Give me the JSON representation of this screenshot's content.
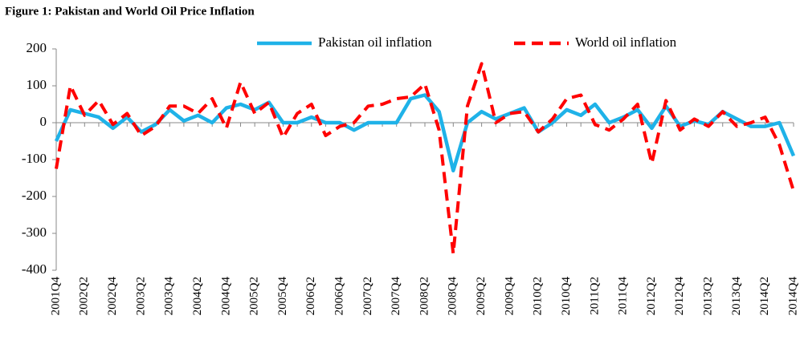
{
  "chart_data": {
    "type": "line",
    "title": "Figure 1: Pakistan and World Oil Price Inflation",
    "categories": [
      "2001Q4",
      null,
      "2002Q2",
      null,
      "2002Q4",
      null,
      "2003Q2",
      null,
      "2003Q4",
      null,
      "2004Q2",
      null,
      "2004Q4",
      null,
      "2005Q2",
      null,
      "2005Q4",
      null,
      "2006Q2",
      null,
      "2006Q4",
      null,
      "2007Q2",
      null,
      "2007Q4",
      null,
      "2008Q2",
      null,
      "2008Q4",
      null,
      "2009Q2",
      null,
      "2009Q4",
      null,
      "2010Q2",
      null,
      "2010Q4",
      null,
      "2011Q2",
      null,
      "2011Q4",
      null,
      "2012Q2",
      null,
      "2012Q4",
      null,
      "2013Q2",
      null,
      "2013Q4",
      null,
      "2014Q2",
      null,
      "2014Q4"
    ],
    "series": [
      {
        "name": "Pakistan oil inflation",
        "color": "#1fb2e8",
        "dash": false,
        "values": [
          -50,
          35,
          25,
          15,
          -15,
          15,
          -25,
          -5,
          35,
          5,
          20,
          0,
          40,
          50,
          35,
          55,
          0,
          0,
          15,
          0,
          0,
          -20,
          0,
          0,
          0,
          65,
          75,
          30,
          -130,
          0,
          30,
          10,
          25,
          40,
          -25,
          0,
          35,
          20,
          50,
          0,
          15,
          35,
          -15,
          45,
          -10,
          5,
          -5,
          30,
          10,
          -10,
          -10,
          0,
          -90
        ]
      },
      {
        "name": "World oil inflation",
        "color": "#ff0000",
        "dash": true,
        "values": [
          -125,
          100,
          20,
          60,
          -5,
          25,
          -35,
          -10,
          45,
          45,
          25,
          65,
          -15,
          110,
          25,
          55,
          -40,
          25,
          50,
          -35,
          -10,
          0,
          45,
          50,
          65,
          70,
          105,
          -20,
          -355,
          45,
          160,
          0,
          25,
          30,
          -25,
          10,
          65,
          75,
          -5,
          -20,
          10,
          50,
          -110,
          60,
          -20,
          10,
          -10,
          30,
          -10,
          0,
          15,
          -60,
          -185
        ]
      }
    ],
    "ylim": [
      -400,
      200
    ],
    "yticks": [
      -400,
      -300,
      -200,
      -100,
      0,
      100,
      200
    ],
    "grid": false,
    "legend": "top"
  }
}
